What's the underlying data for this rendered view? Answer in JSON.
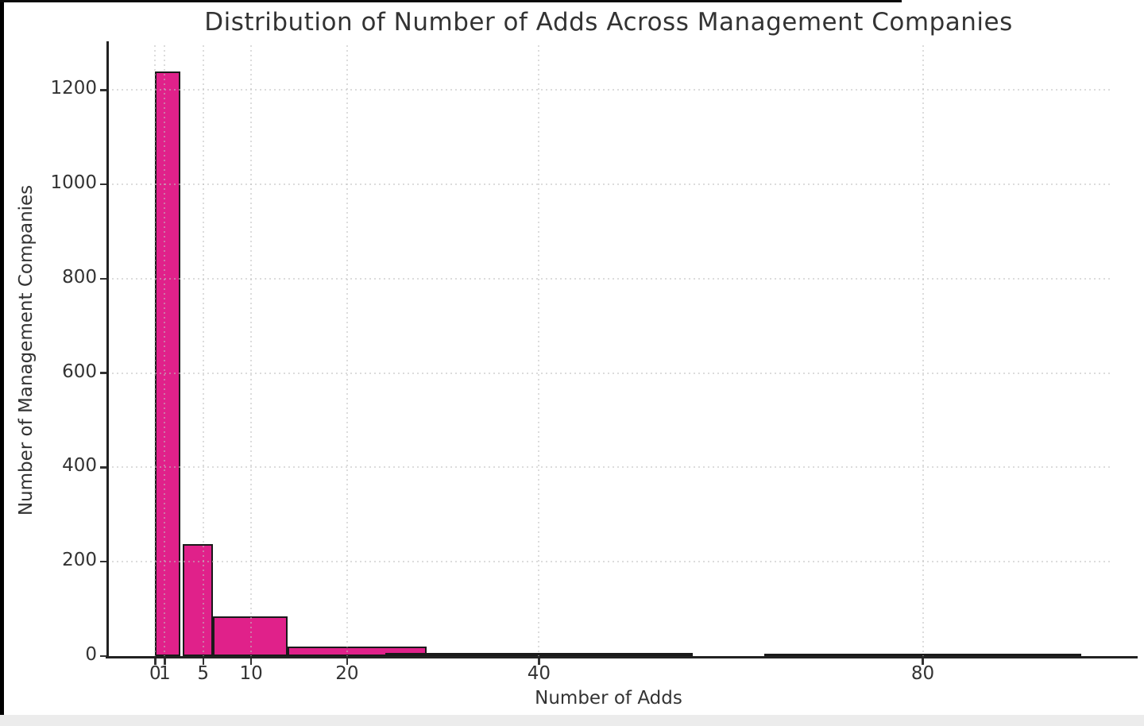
{
  "window": {
    "frame_color": "#000000",
    "bottom_strip_color": "#ececec",
    "background": "#ffffff"
  },
  "chart_data": {
    "type": "bar",
    "subtype": "histogram",
    "title": "Distribution of Number of Adds Across Management Companies",
    "xlabel": "Number of Adds",
    "ylabel": "Number of Management Companies",
    "x_ticks": [
      0,
      1,
      5,
      10,
      20,
      40,
      80
    ],
    "y_ticks": [
      0,
      200,
      400,
      600,
      800,
      1000,
      1200
    ],
    "xlim": [
      -5.0,
      99.5
    ],
    "ylim": [
      0,
      1295
    ],
    "grid": true,
    "grid_style": "dotted",
    "legend": "none",
    "bars": [
      {
        "x_start": 0.0,
        "x_end": 2.6,
        "count": 1240
      },
      {
        "x_start": 2.9,
        "x_end": 6.0,
        "count": 237
      },
      {
        "x_start": 6.0,
        "x_end": 13.8,
        "count": 84
      },
      {
        "x_start": 13.8,
        "x_end": 28.3,
        "count": 20
      },
      {
        "x_start": 24.0,
        "x_end": 56.0,
        "count": 6
      },
      {
        "x_start": 63.5,
        "x_end": 96.5,
        "count": 4
      }
    ],
    "colors": {
      "bar_fill": "#E0218A",
      "bar_edge": "#1a1a1a",
      "grid": "#bfbfbf",
      "text": "#333333",
      "spine": "#222222"
    }
  }
}
